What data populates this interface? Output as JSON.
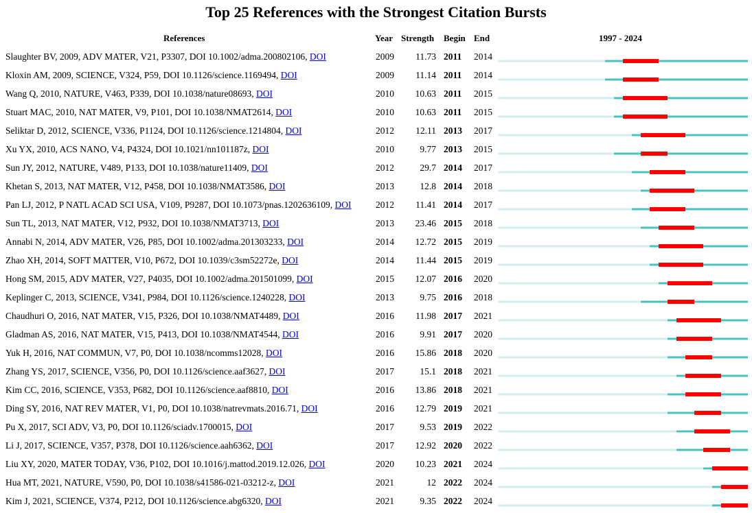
{
  "title": "Top 25 References with the Strongest Citation Bursts",
  "headers": {
    "references": "References",
    "year": "Year",
    "strength": "Strength",
    "begin": "Begin",
    "end": "End",
    "range": "1997 - 2024"
  },
  "colors": {
    "before_publication": "#d3ecee",
    "active": "#47c2c0",
    "burst": "#ff0000",
    "link": "#0000ee"
  },
  "chart_data": {
    "type": "table",
    "title": "Top 25 References with the Strongest Citation Bursts",
    "time_range": [
      1997,
      2024
    ],
    "columns": [
      "References",
      "Year",
      "Strength",
      "Begin",
      "End",
      "1997 - 2024"
    ],
    "rows": [
      {
        "ref": "Slaughter BV, 2009, ADV MATER, V21, P3307, DOI 10.1002/adma.200802106,",
        "link": "DOI",
        "year": 2009,
        "strength": "11.73",
        "begin": 2011,
        "end": 2014
      },
      {
        "ref": "Kloxin AM, 2009, SCIENCE, V324, P59, DOI 10.1126/science.1169494,",
        "link": "DOI",
        "year": 2009,
        "strength": "11.14",
        "begin": 2011,
        "end": 2014
      },
      {
        "ref": "Wang Q, 2010, NATURE, V463, P339, DOI 10.1038/nature08693,",
        "link": "DOI",
        "year": 2010,
        "strength": "10.63",
        "begin": 2011,
        "end": 2015
      },
      {
        "ref": "Stuart MAC, 2010, NAT MATER, V9, P101, DOI 10.1038/NMAT2614,",
        "link": "DOI",
        "year": 2010,
        "strength": "10.63",
        "begin": 2011,
        "end": 2015
      },
      {
        "ref": "Seliktar D, 2012, SCIENCE, V336, P1124, DOI 10.1126/science.1214804,",
        "link": "DOI",
        "year": 2012,
        "strength": "12.11",
        "begin": 2013,
        "end": 2017
      },
      {
        "ref": "Xu YX, 2010, ACS NANO, V4, P4324, DOI 10.1021/nn101187z,",
        "link": "DOI",
        "year": 2010,
        "strength": "9.77",
        "begin": 2013,
        "end": 2015
      },
      {
        "ref": "Sun JY, 2012, NATURE, V489, P133, DOI 10.1038/nature11409,",
        "link": "DOI",
        "year": 2012,
        "strength": "29.7",
        "begin": 2014,
        "end": 2017
      },
      {
        "ref": "Khetan S, 2013, NAT MATER, V12, P458, DOI 10.1038/NMAT3586,",
        "link": "DOI",
        "year": 2013,
        "strength": "12.8",
        "begin": 2014,
        "end": 2018
      },
      {
        "ref": "Pan LJ, 2012, P NATL ACAD SCI USA, V109, P9287, DOI 10.1073/pnas.1202636109,",
        "link": "DOI",
        "year": 2012,
        "strength": "11.41",
        "begin": 2014,
        "end": 2017
      },
      {
        "ref": "Sun TL, 2013, NAT MATER, V12, P932, DOI 10.1038/NMAT3713,",
        "link": "DOI",
        "year": 2013,
        "strength": "23.46",
        "begin": 2015,
        "end": 2018
      },
      {
        "ref": "Annabi N, 2014, ADV MATER, V26, P85, DOI 10.1002/adma.201303233,",
        "link": "DOI",
        "year": 2014,
        "strength": "12.72",
        "begin": 2015,
        "end": 2019
      },
      {
        "ref": "Zhao XH, 2014, SOFT MATTER, V10, P672, DOI 10.1039/c3sm52272e,",
        "link": "DOI",
        "year": 2014,
        "strength": "11.44",
        "begin": 2015,
        "end": 2019
      },
      {
        "ref": "Hong SM, 2015, ADV MATER, V27, P4035, DOI 10.1002/adma.201501099,",
        "link": "DOI",
        "year": 2015,
        "strength": "12.07",
        "begin": 2016,
        "end": 2020
      },
      {
        "ref": "Keplinger C, 2013, SCIENCE, V341, P984, DOI 10.1126/science.1240228,",
        "link": "DOI",
        "year": 2013,
        "strength": "9.75",
        "begin": 2016,
        "end": 2018
      },
      {
        "ref": "Chaudhuri O, 2016, NAT MATER, V15, P326, DOI 10.1038/NMAT4489,",
        "link": "DOI",
        "year": 2016,
        "strength": "11.98",
        "begin": 2017,
        "end": 2021
      },
      {
        "ref": "Gladman AS, 2016, NAT MATER, V15, P413, DOI 10.1038/NMAT4544,",
        "link": "DOI",
        "year": 2016,
        "strength": "9.91",
        "begin": 2017,
        "end": 2020
      },
      {
        "ref": "Yuk H, 2016, NAT COMMUN, V7, P0, DOI 10.1038/ncomms12028,",
        "link": "DOI",
        "year": 2016,
        "strength": "15.86",
        "begin": 2018,
        "end": 2020
      },
      {
        "ref": "Zhang YS, 2017, SCIENCE, V356, P0, DOI 10.1126/science.aaf3627,",
        "link": "DOI",
        "year": 2017,
        "strength": "15.1",
        "begin": 2018,
        "end": 2021
      },
      {
        "ref": "Kim CC, 2016, SCIENCE, V353, P682, DOI 10.1126/science.aaf8810,",
        "link": "DOI",
        "year": 2016,
        "strength": "13.86",
        "begin": 2018,
        "end": 2021
      },
      {
        "ref": "Ding SY, 2016, NAT REV MATER, V1, P0, DOI 10.1038/natrevmats.2016.71,",
        "link": "DOI",
        "year": 2016,
        "strength": "12.79",
        "begin": 2019,
        "end": 2021
      },
      {
        "ref": "Pu X, 2017, SCI ADV, V3, P0, DOI 10.1126/sciadv.1700015,",
        "link": "DOI",
        "year": 2017,
        "strength": "9.53",
        "begin": 2019,
        "end": 2022
      },
      {
        "ref": "Li J, 2017, SCIENCE, V357, P378, DOI 10.1126/science.aah6362,",
        "link": "DOI",
        "year": 2017,
        "strength": "12.92",
        "begin": 2020,
        "end": 2022
      },
      {
        "ref": "Liu XY, 2020, MATER TODAY, V36, P102, DOI 10.1016/j.mattod.2019.12.026,",
        "link": "DOI",
        "year": 2020,
        "strength": "10.23",
        "begin": 2021,
        "end": 2024
      },
      {
        "ref": "Hua MT, 2021, NATURE, V590, P0, DOI 10.1038/s41586-021-03212-z,",
        "link": "DOI",
        "year": 2021,
        "strength": "12",
        "begin": 2022,
        "end": 2024
      },
      {
        "ref": "Kim J, 2021, SCIENCE, V374, P212, DOI 10.1126/science.abg6320,",
        "link": "DOI",
        "year": 2021,
        "strength": "9.35",
        "begin": 2022,
        "end": 2024
      }
    ]
  }
}
